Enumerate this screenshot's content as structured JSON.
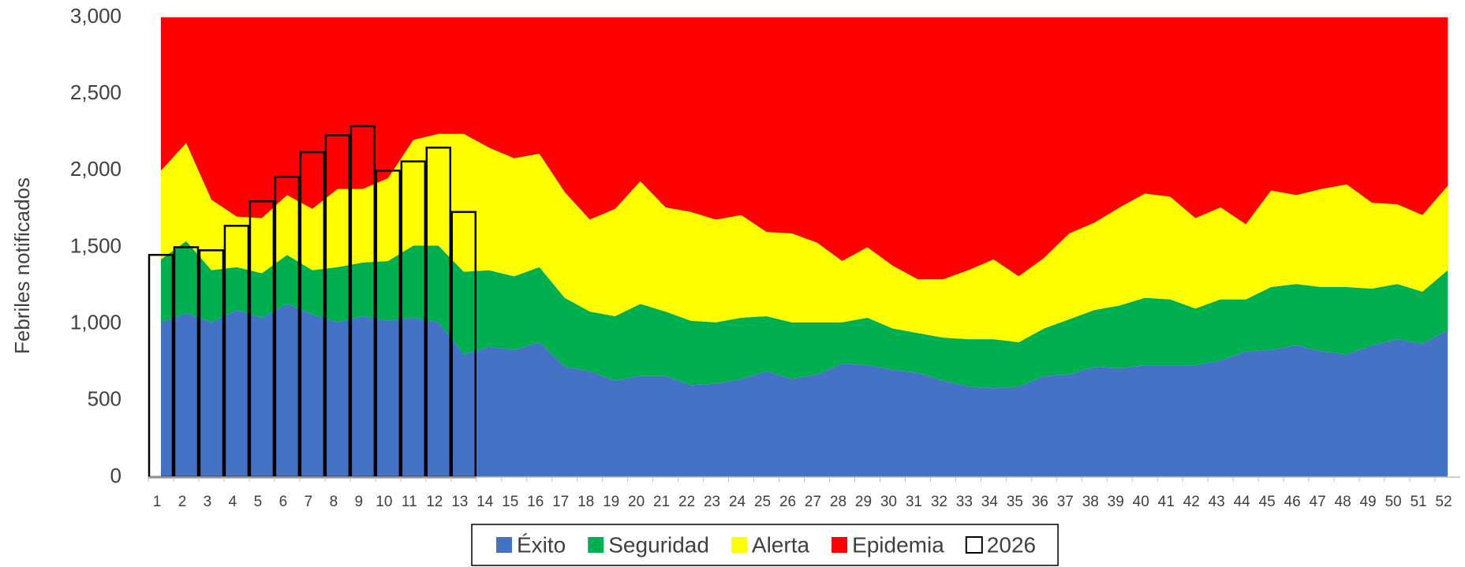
{
  "chart_data": {
    "type": "area",
    "y_label": "Febriles notificados",
    "categories": [
      1,
      2,
      3,
      4,
      5,
      6,
      7,
      8,
      9,
      10,
      11,
      12,
      13,
      14,
      15,
      16,
      17,
      18,
      19,
      20,
      21,
      22,
      23,
      24,
      25,
      26,
      27,
      28,
      29,
      30,
      31,
      32,
      33,
      34,
      35,
      36,
      37,
      38,
      39,
      40,
      41,
      42,
      43,
      44,
      45,
      46,
      47,
      48,
      49,
      50,
      51,
      52
    ],
    "series": [
      {
        "name": "Éxito",
        "color": "#4472c4",
        "values": [
          1010,
          1070,
          1010,
          1090,
          1040,
          1130,
          1060,
          1010,
          1050,
          1020,
          1040,
          1010,
          800,
          850,
          830,
          880,
          720,
          690,
          630,
          660,
          660,
          600,
          610,
          640,
          690,
          640,
          670,
          740,
          730,
          700,
          680,
          630,
          590,
          580,
          590,
          660,
          670,
          720,
          710,
          730,
          730,
          730,
          760,
          820,
          830,
          860,
          820,
          800,
          860,
          900,
          870,
          960
        ]
      },
      {
        "name": "Seguridad",
        "color": "#00b050",
        "values": [
          410,
          470,
          340,
          280,
          290,
          320,
          290,
          360,
          350,
          390,
          470,
          500,
          540,
          500,
          480,
          490,
          450,
          390,
          420,
          470,
          420,
          420,
          400,
          400,
          360,
          370,
          340,
          270,
          310,
          270,
          260,
          280,
          310,
          320,
          290,
          310,
          360,
          370,
          410,
          440,
          430,
          370,
          400,
          340,
          410,
          400,
          420,
          440,
          370,
          360,
          340,
          390
        ]
      },
      {
        "name": "Alerta",
        "color": "#ffff00",
        "values": [
          580,
          640,
          460,
          330,
          360,
          390,
          400,
          510,
          480,
          540,
          690,
          730,
          900,
          800,
          770,
          740,
          690,
          600,
          700,
          800,
          680,
          710,
          670,
          670,
          550,
          580,
          520,
          400,
          460,
          410,
          350,
          380,
          450,
          520,
          430,
          460,
          560,
          570,
          640,
          680,
          670,
          590,
          600,
          490,
          630,
          580,
          640,
          670,
          560,
          520,
          500,
          550
        ]
      },
      {
        "name": "Epidemia",
        "color": "#ff0000",
        "values": [
          1000,
          820,
          1190,
          1300,
          1310,
          1160,
          1250,
          1120,
          1120,
          1050,
          800,
          760,
          760,
          850,
          920,
          890,
          1140,
          1320,
          1250,
          1070,
          1240,
          1270,
          1320,
          1290,
          1400,
          1410,
          1470,
          1590,
          1500,
          1620,
          1710,
          1710,
          1650,
          1580,
          1690,
          1570,
          1410,
          1340,
          1240,
          1150,
          1170,
          1310,
          1240,
          1350,
          1130,
          1160,
          1120,
          1090,
          1210,
          1220,
          1290,
          1100
        ]
      },
      {
        "name": "2026",
        "type": "bar",
        "color": "#000000",
        "values": [
          1450,
          1500,
          1480,
          1640,
          1800,
          1960,
          2120,
          2230,
          2290,
          2000,
          2060,
          2150,
          1730,
          null,
          null,
          null,
          null,
          null,
          null,
          null,
          null,
          null,
          null,
          null,
          null,
          null,
          null,
          null,
          null,
          null,
          null,
          null,
          null,
          null,
          null,
          null,
          null,
          null,
          null,
          null,
          null,
          null,
          null,
          null,
          null,
          null,
          null,
          null,
          null,
          null,
          null,
          null
        ]
      }
    ],
    "ylim": [
      0,
      3000
    ],
    "yticks": [
      0,
      500,
      {
        "value": 1000,
        "label": "1,000"
      },
      {
        "value": 1500,
        "label": "1,500"
      },
      {
        "value": 2000,
        "label": "2,000"
      },
      {
        "value": 2500,
        "label": "2,500"
      },
      {
        "value": 3000,
        "label": "3,000"
      }
    ],
    "grid": false,
    "legend": "bottom"
  }
}
